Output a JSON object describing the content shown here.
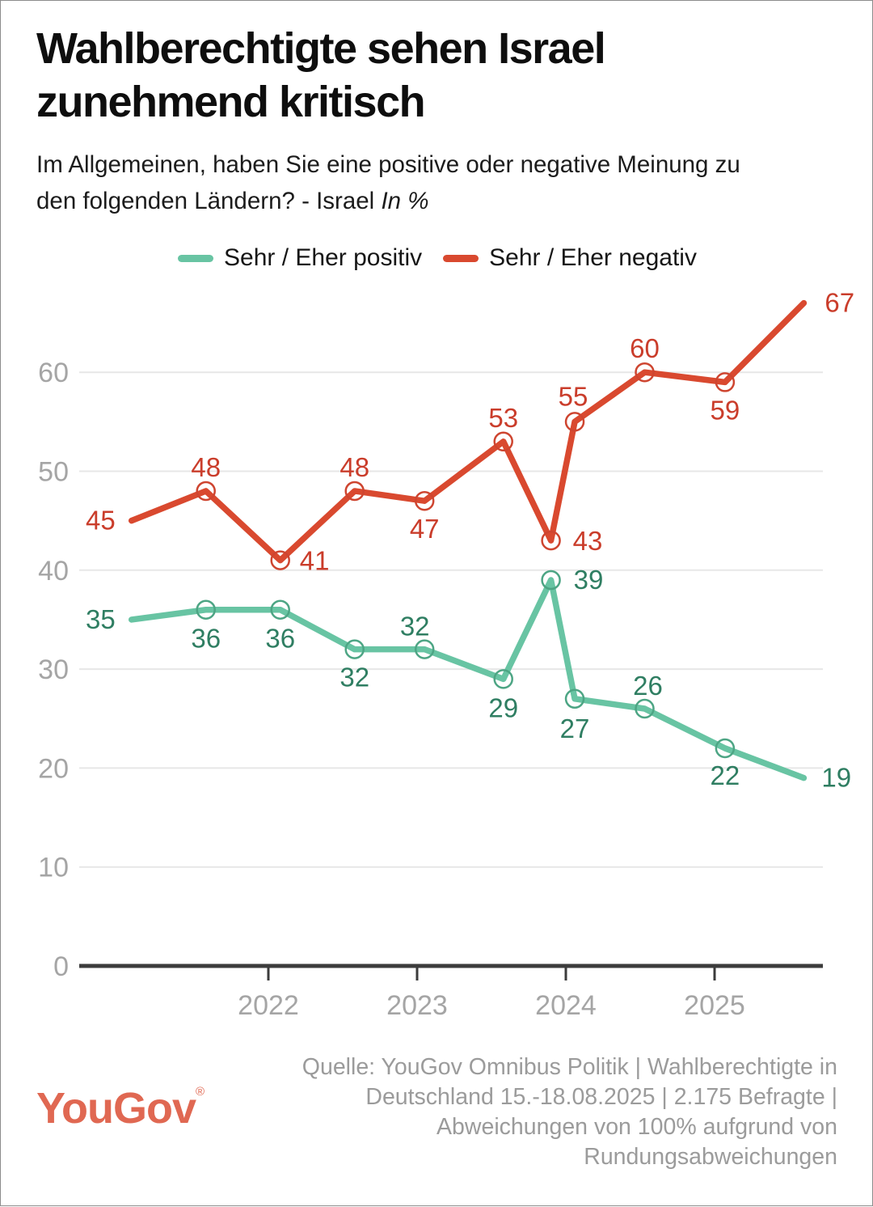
{
  "header": {
    "title_line1": "Wahlberechtigte sehen Israel",
    "title_line2": "zunehmend kritisch",
    "subtitle_line1": "Im Allgemeinen, haben Sie eine positive oder negative Meinung zu",
    "subtitle_line2_prefix": "den folgenden Ländern? - Israel ",
    "subtitle_italic": "In %"
  },
  "footer": {
    "logo_text": "YouGov",
    "logo_reg": "®",
    "source_lines": [
      "Quelle: YouGov Omnibus Politik | Wahlberechtigte in",
      "Deutschland 15.-18.08.2025 | 2.175 Befragte |",
      "Abweichungen von 100% aufgrund von",
      "Rundungsabweichungen"
    ]
  },
  "colors": {
    "title": "#0e0e0e",
    "subtitle": "#1c1c1c",
    "axis_line": "#3c3c3c",
    "axis_text": "#a5a5a5",
    "gridline": "#e7e7e7",
    "footer_text": "#9b9b9b",
    "logo": "#e06852",
    "background": "#ffffff"
  },
  "chart_data": {
    "type": "line",
    "title": "Wahlberechtigte sehen Israel zunehmend kritisch",
    "subtitle": "Im Allgemeinen, haben Sie eine positive oder negative Meinung zu den folgenden Ländern? - Israel In %",
    "unit": "%",
    "x_unit": "year (decimal, estimated from axis position)",
    "x": [
      2021.08,
      2021.58,
      2022.08,
      2022.58,
      2023.05,
      2023.58,
      2023.9,
      2024.06,
      2024.53,
      2025.07,
      2025.6
    ],
    "x_ticks": [
      "2022",
      "2023",
      "2024",
      "2025"
    ],
    "x_tick_values": [
      2022,
      2023,
      2024,
      2025
    ],
    "x_axis_range": [
      2020.73,
      2025.75
    ],
    "y_ticks": [
      0,
      10,
      20,
      30,
      40,
      50,
      60
    ],
    "ylim": [
      0,
      70
    ],
    "grid": "horizontal only",
    "legend_position": "top center",
    "series": [
      {
        "name": "Sehr / Eher positiv",
        "color": "#68c4a3",
        "marker_stroke": "#4da584",
        "label_color": "#2f7e62",
        "values": [
          35,
          36,
          36,
          32,
          32,
          29,
          39,
          27,
          26,
          22,
          19
        ]
      },
      {
        "name": "Sehr / Eher negativ",
        "color": "#d9492f",
        "marker_stroke": "#ce4530",
        "label_color": "#ca3d2b",
        "values": [
          45,
          48,
          41,
          48,
          47,
          53,
          43,
          55,
          60,
          59,
          67
        ]
      }
    ]
  }
}
